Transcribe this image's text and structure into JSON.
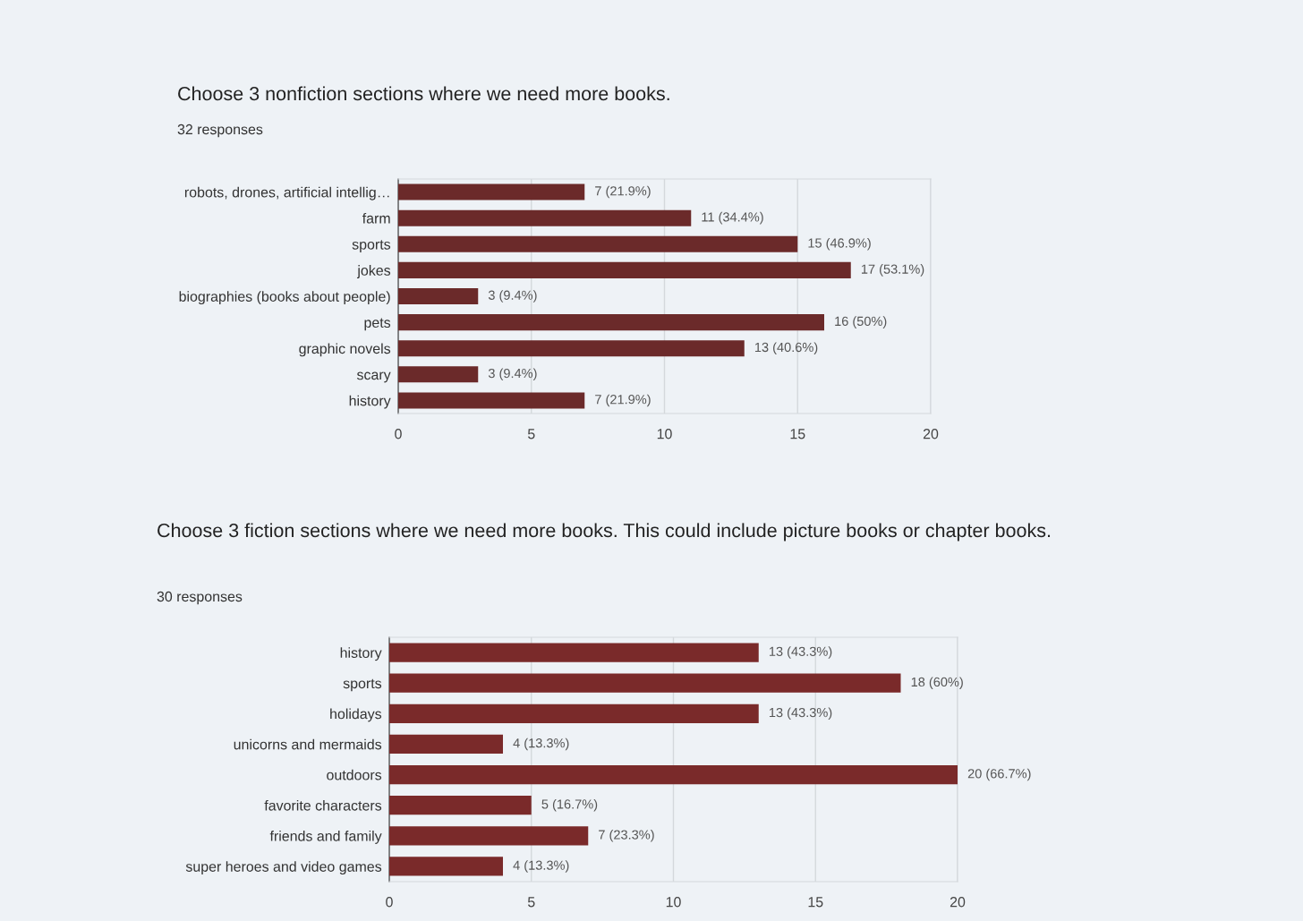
{
  "chart_data": [
    {
      "type": "bar",
      "orientation": "horizontal",
      "title": "Choose 3 nonfiction sections where we need more books.",
      "subtitle": "32 responses",
      "categories": [
        "robots, drones, artificial intellig…",
        "farm",
        "sports",
        "jokes",
        "biographies (books about people)",
        "pets",
        "graphic novels",
        "scary",
        "history"
      ],
      "values": [
        7,
        11,
        15,
        17,
        3,
        16,
        13,
        3,
        7
      ],
      "value_labels": [
        "7 (21.9%)",
        "11 (34.4%)",
        "15 (46.9%)",
        "17 (53.1%)",
        "3 (9.4%)",
        "16 (50%)",
        "13 (40.6%)",
        "3 (9.4%)",
        "7 (21.9%)"
      ],
      "color": "#6b2a2a",
      "xlim": [
        0,
        20
      ],
      "xticks": [
        0,
        5,
        10,
        15,
        20
      ],
      "grid": "x"
    },
    {
      "type": "bar",
      "orientation": "horizontal",
      "title": "Choose 3 fiction sections where we need more books. This could include picture books or chapter books.",
      "subtitle": "30 responses",
      "categories": [
        "history",
        "sports",
        "holidays",
        "unicorns and mermaids",
        "outdoors",
        "favorite characters",
        "friends and family",
        "super heroes and video games"
      ],
      "values": [
        13,
        18,
        13,
        4,
        20,
        5,
        7,
        4
      ],
      "value_labels": [
        "13 (43.3%)",
        "18 (60%)",
        "13 (43.3%)",
        "4 (13.3%)",
        "20 (66.7%)",
        "5 (16.7%)",
        "7 (23.3%)",
        "4 (13.3%)"
      ],
      "color": "#7a2a2a",
      "xlim": [
        0,
        20
      ],
      "xticks": [
        0,
        5,
        10,
        15,
        20
      ],
      "grid": "x"
    }
  ]
}
